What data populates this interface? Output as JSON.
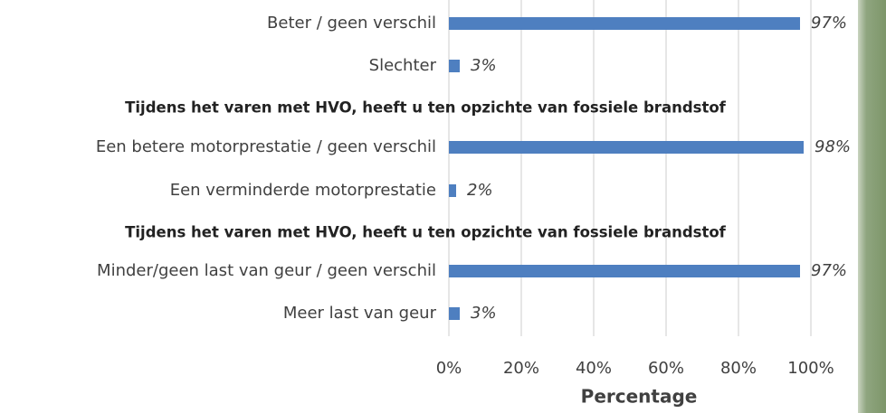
{
  "chart_data": {
    "type": "bar",
    "orientation": "horizontal",
    "annotations": [
      "Tijdens het varen met HVO, heeft u ten opzichte van fossiele brandstof",
      "Tijdens het varen met HVO, heeft u ten opzichte van fossiele brandstof"
    ],
    "categories": [
      "Beter / geen verschil",
      "Slechter",
      "Een betere motorprestatie / geen verschil",
      "Een verminderde motorprestatie",
      "Minder/geen last van geur / geen verschil",
      "Meer last van geur"
    ],
    "values": [
      97,
      3,
      98,
      2,
      97,
      3
    ],
    "value_labels": [
      "97%",
      "3%",
      "98%",
      "2%",
      "97%",
      "3%"
    ],
    "color": "#4e7fc0",
    "xlabel": "Percentage",
    "xlim": [
      0,
      100
    ],
    "xticks": [
      {
        "value": 0,
        "label": "0%"
      },
      {
        "value": 20,
        "label": "20%"
      },
      {
        "value": 40,
        "label": "40%"
      },
      {
        "value": 60,
        "label": "60%"
      },
      {
        "value": 80,
        "label": "80%"
      },
      {
        "value": 100,
        "label": "100%"
      }
    ],
    "grid": true
  }
}
